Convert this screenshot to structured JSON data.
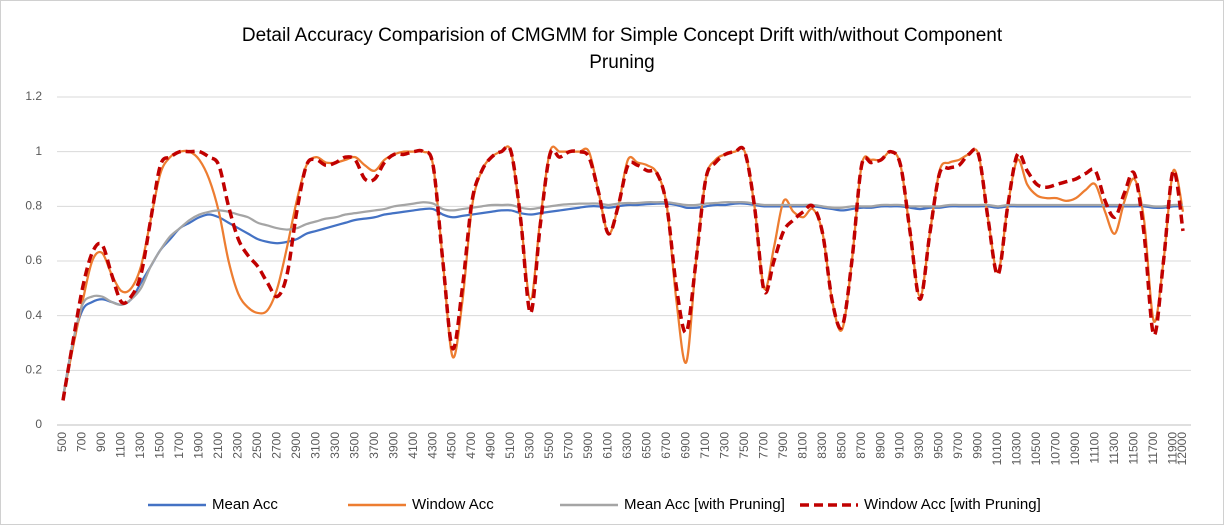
{
  "chart_data": {
    "type": "line",
    "title": "Detail Accuracy Comparision of CMGMM for Simple Concept Drift with/without Component",
    "subtitle": "Pruning",
    "categories": [
      500,
      null,
      700,
      null,
      900,
      null,
      1100,
      null,
      1300,
      null,
      1500,
      null,
      1700,
      null,
      1900,
      null,
      2100,
      null,
      2300,
      null,
      2500,
      null,
      2700,
      null,
      2900,
      null,
      3100,
      null,
      3300,
      null,
      3500,
      null,
      3700,
      null,
      3900,
      null,
      4100,
      null,
      4300,
      null,
      4500,
      null,
      4700,
      null,
      4900,
      null,
      5100,
      null,
      5300,
      null,
      5500,
      null,
      5700,
      null,
      5900,
      null,
      6100,
      null,
      6300,
      null,
      6500,
      null,
      6700,
      null,
      6900,
      null,
      7100,
      null,
      7300,
      null,
      7500,
      null,
      7700,
      null,
      7900,
      null,
      8100,
      null,
      8300,
      null,
      8500,
      null,
      8700,
      null,
      8900,
      null,
      9100,
      null,
      9300,
      null,
      9500,
      null,
      9700,
      null,
      9900,
      null,
      10100,
      null,
      10300,
      null,
      10500,
      null,
      10700,
      null,
      10900,
      null,
      11100,
      null,
      11300,
      null,
      11500,
      null,
      11700,
      null,
      11900,
      12000
    ],
    "ylim": [
      0,
      1.2
    ],
    "yticks": [
      0,
      0.2,
      0.4,
      0.6,
      0.8,
      1,
      1.2
    ],
    "grid": true,
    "legend": "bottom",
    "series": [
      {
        "name": "Mean Acc",
        "color": "#4472c4",
        "dashed": false,
        "values": [
          0.1,
          0.3,
          0.42,
          0.45,
          0.46,
          0.45,
          0.44,
          0.46,
          0.52,
          0.58,
          0.64,
          0.68,
          0.72,
          0.74,
          0.76,
          0.77,
          0.76,
          0.74,
          0.72,
          0.7,
          0.68,
          0.67,
          0.665,
          0.67,
          0.68,
          0.7,
          0.71,
          0.72,
          0.73,
          0.74,
          0.75,
          0.755,
          0.76,
          0.77,
          0.775,
          0.78,
          0.785,
          0.79,
          0.79,
          0.77,
          0.76,
          0.765,
          0.77,
          0.775,
          0.78,
          0.785,
          0.785,
          0.775,
          0.77,
          0.775,
          0.78,
          0.785,
          0.79,
          0.795,
          0.8,
          0.8,
          0.795,
          0.8,
          0.805,
          0.805,
          0.808,
          0.81,
          0.81,
          0.805,
          0.795,
          0.795,
          0.8,
          0.805,
          0.805,
          0.81,
          0.81,
          0.805,
          0.8,
          0.8,
          0.8,
          0.8,
          0.8,
          0.8,
          0.795,
          0.79,
          0.785,
          0.79,
          0.795,
          0.795,
          0.8,
          0.8,
          0.8,
          0.795,
          0.79,
          0.795,
          0.795,
          0.8,
          0.8,
          0.8,
          0.8,
          0.8,
          0.795,
          0.8,
          0.8,
          0.8,
          0.8,
          0.8,
          0.8,
          0.8,
          0.8,
          0.8,
          0.8,
          0.8,
          0.8,
          0.8,
          0.8,
          0.8,
          0.795,
          0.795,
          0.8,
          0.8
        ]
      },
      {
        "name": "Window Acc",
        "color": "#ed7d31",
        "dashed": false,
        "values": [
          0.1,
          0.28,
          0.45,
          0.6,
          0.63,
          0.55,
          0.49,
          0.5,
          0.58,
          0.75,
          0.92,
          0.98,
          1.0,
          1.0,
          0.97,
          0.9,
          0.78,
          0.6,
          0.48,
          0.43,
          0.41,
          0.42,
          0.5,
          0.65,
          0.82,
          0.95,
          0.98,
          0.96,
          0.96,
          0.97,
          0.98,
          0.95,
          0.93,
          0.97,
          0.99,
          1.0,
          1.0,
          1.0,
          0.95,
          0.6,
          0.25,
          0.45,
          0.8,
          0.93,
          0.98,
          1.0,
          1.0,
          0.75,
          0.46,
          0.75,
          1.0,
          1.0,
          1.0,
          1.0,
          1.0,
          0.85,
          0.7,
          0.8,
          0.97,
          0.96,
          0.95,
          0.92,
          0.8,
          0.45,
          0.23,
          0.6,
          0.9,
          0.97,
          0.99,
          1.0,
          1.0,
          0.8,
          0.5,
          0.65,
          0.82,
          0.78,
          0.76,
          0.79,
          0.7,
          0.45,
          0.35,
          0.6,
          0.95,
          0.97,
          0.97,
          1.0,
          0.95,
          0.7,
          0.47,
          0.7,
          0.93,
          0.96,
          0.97,
          0.99,
          0.99,
          0.75,
          0.56,
          0.8,
          0.97,
          0.88,
          0.84,
          0.83,
          0.83,
          0.82,
          0.83,
          0.86,
          0.88,
          0.78,
          0.7,
          0.82,
          0.9,
          0.75,
          0.38,
          0.6,
          0.93,
          0.78
        ]
      },
      {
        "name": "Mean Acc [with Pruning]",
        "color": "#a5a5a5",
        "dashed": false,
        "values": [
          0.1,
          0.3,
          0.44,
          0.47,
          0.47,
          0.45,
          0.44,
          0.46,
          0.5,
          0.58,
          0.64,
          0.69,
          0.72,
          0.75,
          0.77,
          0.78,
          0.785,
          0.78,
          0.77,
          0.76,
          0.74,
          0.73,
          0.72,
          0.715,
          0.72,
          0.735,
          0.745,
          0.755,
          0.76,
          0.77,
          0.775,
          0.78,
          0.785,
          0.79,
          0.8,
          0.805,
          0.81,
          0.815,
          0.81,
          0.79,
          0.785,
          0.79,
          0.795,
          0.8,
          0.805,
          0.805,
          0.805,
          0.795,
          0.79,
          0.795,
          0.8,
          0.805,
          0.808,
          0.81,
          0.81,
          0.81,
          0.805,
          0.81,
          0.812,
          0.812,
          0.815,
          0.815,
          0.815,
          0.81,
          0.805,
          0.805,
          0.81,
          0.812,
          0.815,
          0.815,
          0.815,
          0.81,
          0.805,
          0.805,
          0.805,
          0.805,
          0.805,
          0.805,
          0.8,
          0.795,
          0.795,
          0.8,
          0.8,
          0.8,
          0.805,
          0.805,
          0.805,
          0.8,
          0.8,
          0.8,
          0.8,
          0.805,
          0.805,
          0.805,
          0.805,
          0.805,
          0.8,
          0.805,
          0.805,
          0.805,
          0.805,
          0.805,
          0.805,
          0.805,
          0.805,
          0.805,
          0.805,
          0.805,
          0.805,
          0.805,
          0.805,
          0.805,
          0.8,
          0.8,
          0.805,
          0.805
        ]
      },
      {
        "name": "Window Acc [with Pruning]",
        "color": "#c00000",
        "dashed": true,
        "values": [
          0.09,
          0.3,
          0.5,
          0.63,
          0.66,
          0.55,
          0.45,
          0.47,
          0.55,
          0.75,
          0.95,
          0.98,
          1.0,
          1.0,
          1.0,
          0.98,
          0.95,
          0.8,
          0.68,
          0.62,
          0.58,
          0.52,
          0.47,
          0.55,
          0.78,
          0.95,
          0.97,
          0.95,
          0.96,
          0.98,
          0.97,
          0.9,
          0.9,
          0.96,
          0.99,
          0.99,
          1.0,
          1.0,
          0.95,
          0.6,
          0.28,
          0.5,
          0.82,
          0.93,
          0.98,
          1.0,
          1.0,
          0.75,
          0.41,
          0.73,
          0.99,
          0.98,
          1.0,
          1.0,
          0.98,
          0.85,
          0.7,
          0.8,
          0.95,
          0.95,
          0.93,
          0.92,
          0.8,
          0.5,
          0.34,
          0.6,
          0.9,
          0.96,
          0.99,
          1.0,
          1.0,
          0.8,
          0.49,
          0.6,
          0.71,
          0.75,
          0.78,
          0.8,
          0.7,
          0.45,
          0.36,
          0.6,
          0.95,
          0.96,
          0.97,
          1.0,
          0.95,
          0.7,
          0.46,
          0.7,
          0.92,
          0.94,
          0.95,
          0.99,
          0.99,
          0.75,
          0.55,
          0.8,
          0.99,
          0.93,
          0.88,
          0.87,
          0.88,
          0.89,
          0.9,
          0.92,
          0.93,
          0.82,
          0.76,
          0.85,
          0.92,
          0.7,
          0.33,
          0.6,
          0.93,
          0.71
        ]
      }
    ]
  }
}
